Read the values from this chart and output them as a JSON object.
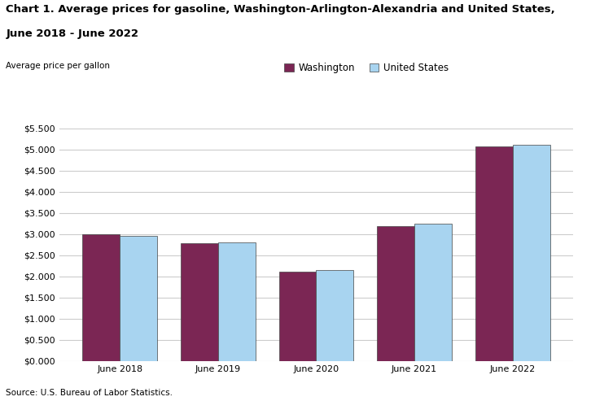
{
  "title_line1": "Chart 1. Average prices for gasoline, Washington-Arlington-Alexandria and United States,",
  "title_line2": "June 2018 - June 2022",
  "ylabel": "Average price per gallon",
  "source": "Source: U.S. Bureau of Labor Statistics.",
  "categories": [
    "June 2018",
    "June 2019",
    "June 2020",
    "June 2021",
    "June 2022"
  ],
  "washington": [
    3.004,
    2.779,
    2.105,
    3.182,
    5.073
  ],
  "us": [
    2.96,
    2.8,
    2.155,
    3.25,
    5.12
  ],
  "washington_color": "#7B2654",
  "us_color": "#A8D4F0",
  "washington_label": "Washington",
  "us_label": "United States",
  "ylim": [
    0,
    5.5
  ],
  "yticks": [
    0.0,
    0.5,
    1.0,
    1.5,
    2.0,
    2.5,
    3.0,
    3.5,
    4.0,
    4.5,
    5.0,
    5.5
  ],
  "bar_width": 0.38,
  "edge_color": "#444444",
  "background_color": "#ffffff",
  "grid_color": "#cccccc",
  "title_fontsize": 9.5,
  "axis_label_fontsize": 7.5,
  "tick_fontsize": 8,
  "legend_fontsize": 8.5,
  "source_fontsize": 7.5
}
